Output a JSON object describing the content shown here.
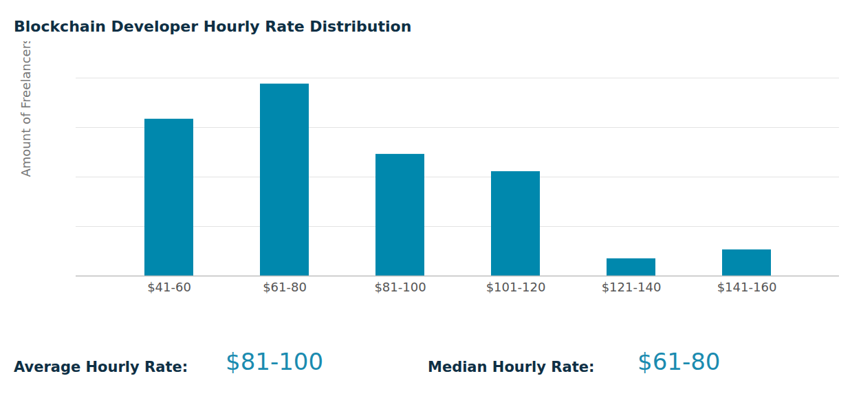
{
  "chart_data": {
    "type": "bar",
    "title": "Blockchain Developer Hourly Rate Distribution",
    "y_label": "Amount of Freelancers",
    "categories": [
      "$41-60",
      "$61-80",
      "$81-100",
      "$101-120",
      "$121-140",
      "$141-160"
    ],
    "values": [
      3.17,
      3.88,
      2.46,
      2.11,
      0.35,
      0.53
    ],
    "color": "#0088ad",
    "ylim": [
      0,
      4
    ],
    "yticks": [
      0,
      1,
      2,
      3,
      4
    ],
    "grid": true,
    "tick_labels": "x",
    "annotations": [
      {
        "label": "Average Hourly Rate:",
        "value": "$81-100"
      },
      {
        "label": "Median Hourly Rate:",
        "value": "$61-80"
      }
    ]
  }
}
